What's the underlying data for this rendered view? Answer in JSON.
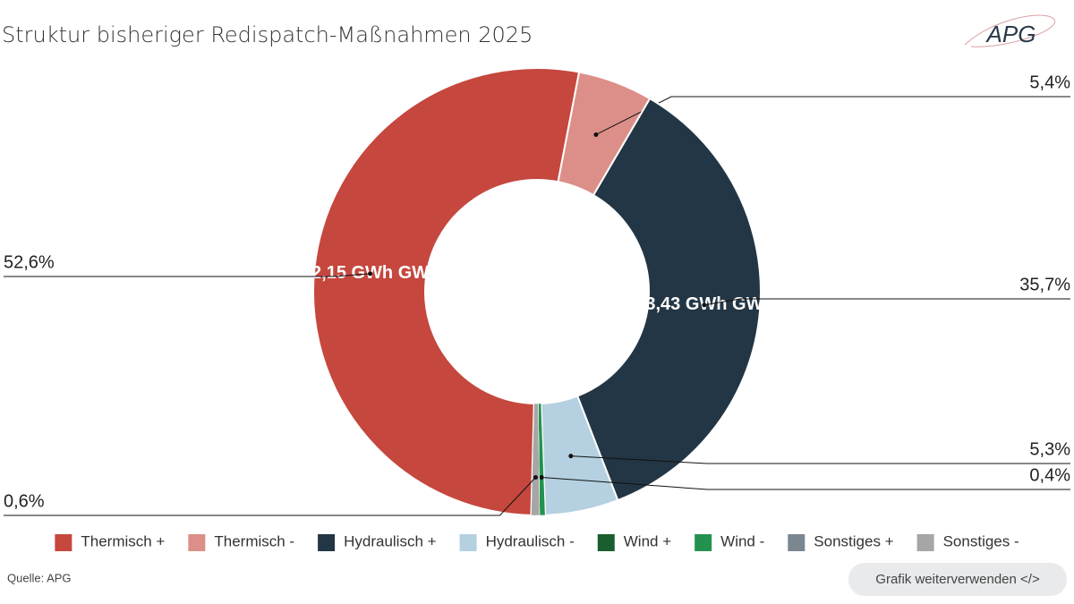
{
  "chart_data": {
    "type": "donut",
    "title": "Struktur bisheriger Redispatch-Maßnahmen 2025",
    "categories": [
      "Thermisch +",
      "Thermisch -",
      "Hydraulisch +",
      "Hydraulisch -",
      "Wind +",
      "Wind -",
      "Sonstiges +",
      "Sonstiges -"
    ],
    "values": [
      52.6,
      5.4,
      35.7,
      5.3,
      0,
      0.4,
      0,
      0.6
    ],
    "value_labels": [
      "52,6%",
      "5,4%",
      "35,7%",
      "5,3%",
      null,
      "0,4%",
      null,
      "0,6%"
    ],
    "inner_labels": [
      "2,15 GWh GW",
      null,
      "3,43 GWh GW",
      null,
      null,
      null,
      null,
      null
    ],
    "colors": [
      "#c5473e",
      "#dc8f88",
      "#233645",
      "#b5d0e0",
      "#1a5e30",
      "#23924f",
      "#7a8690",
      "#a6a6a6"
    ],
    "legend": "bottom",
    "source": "Quelle: APG",
    "logo": "APG",
    "button": "Grafik weiterverwenden </>"
  }
}
